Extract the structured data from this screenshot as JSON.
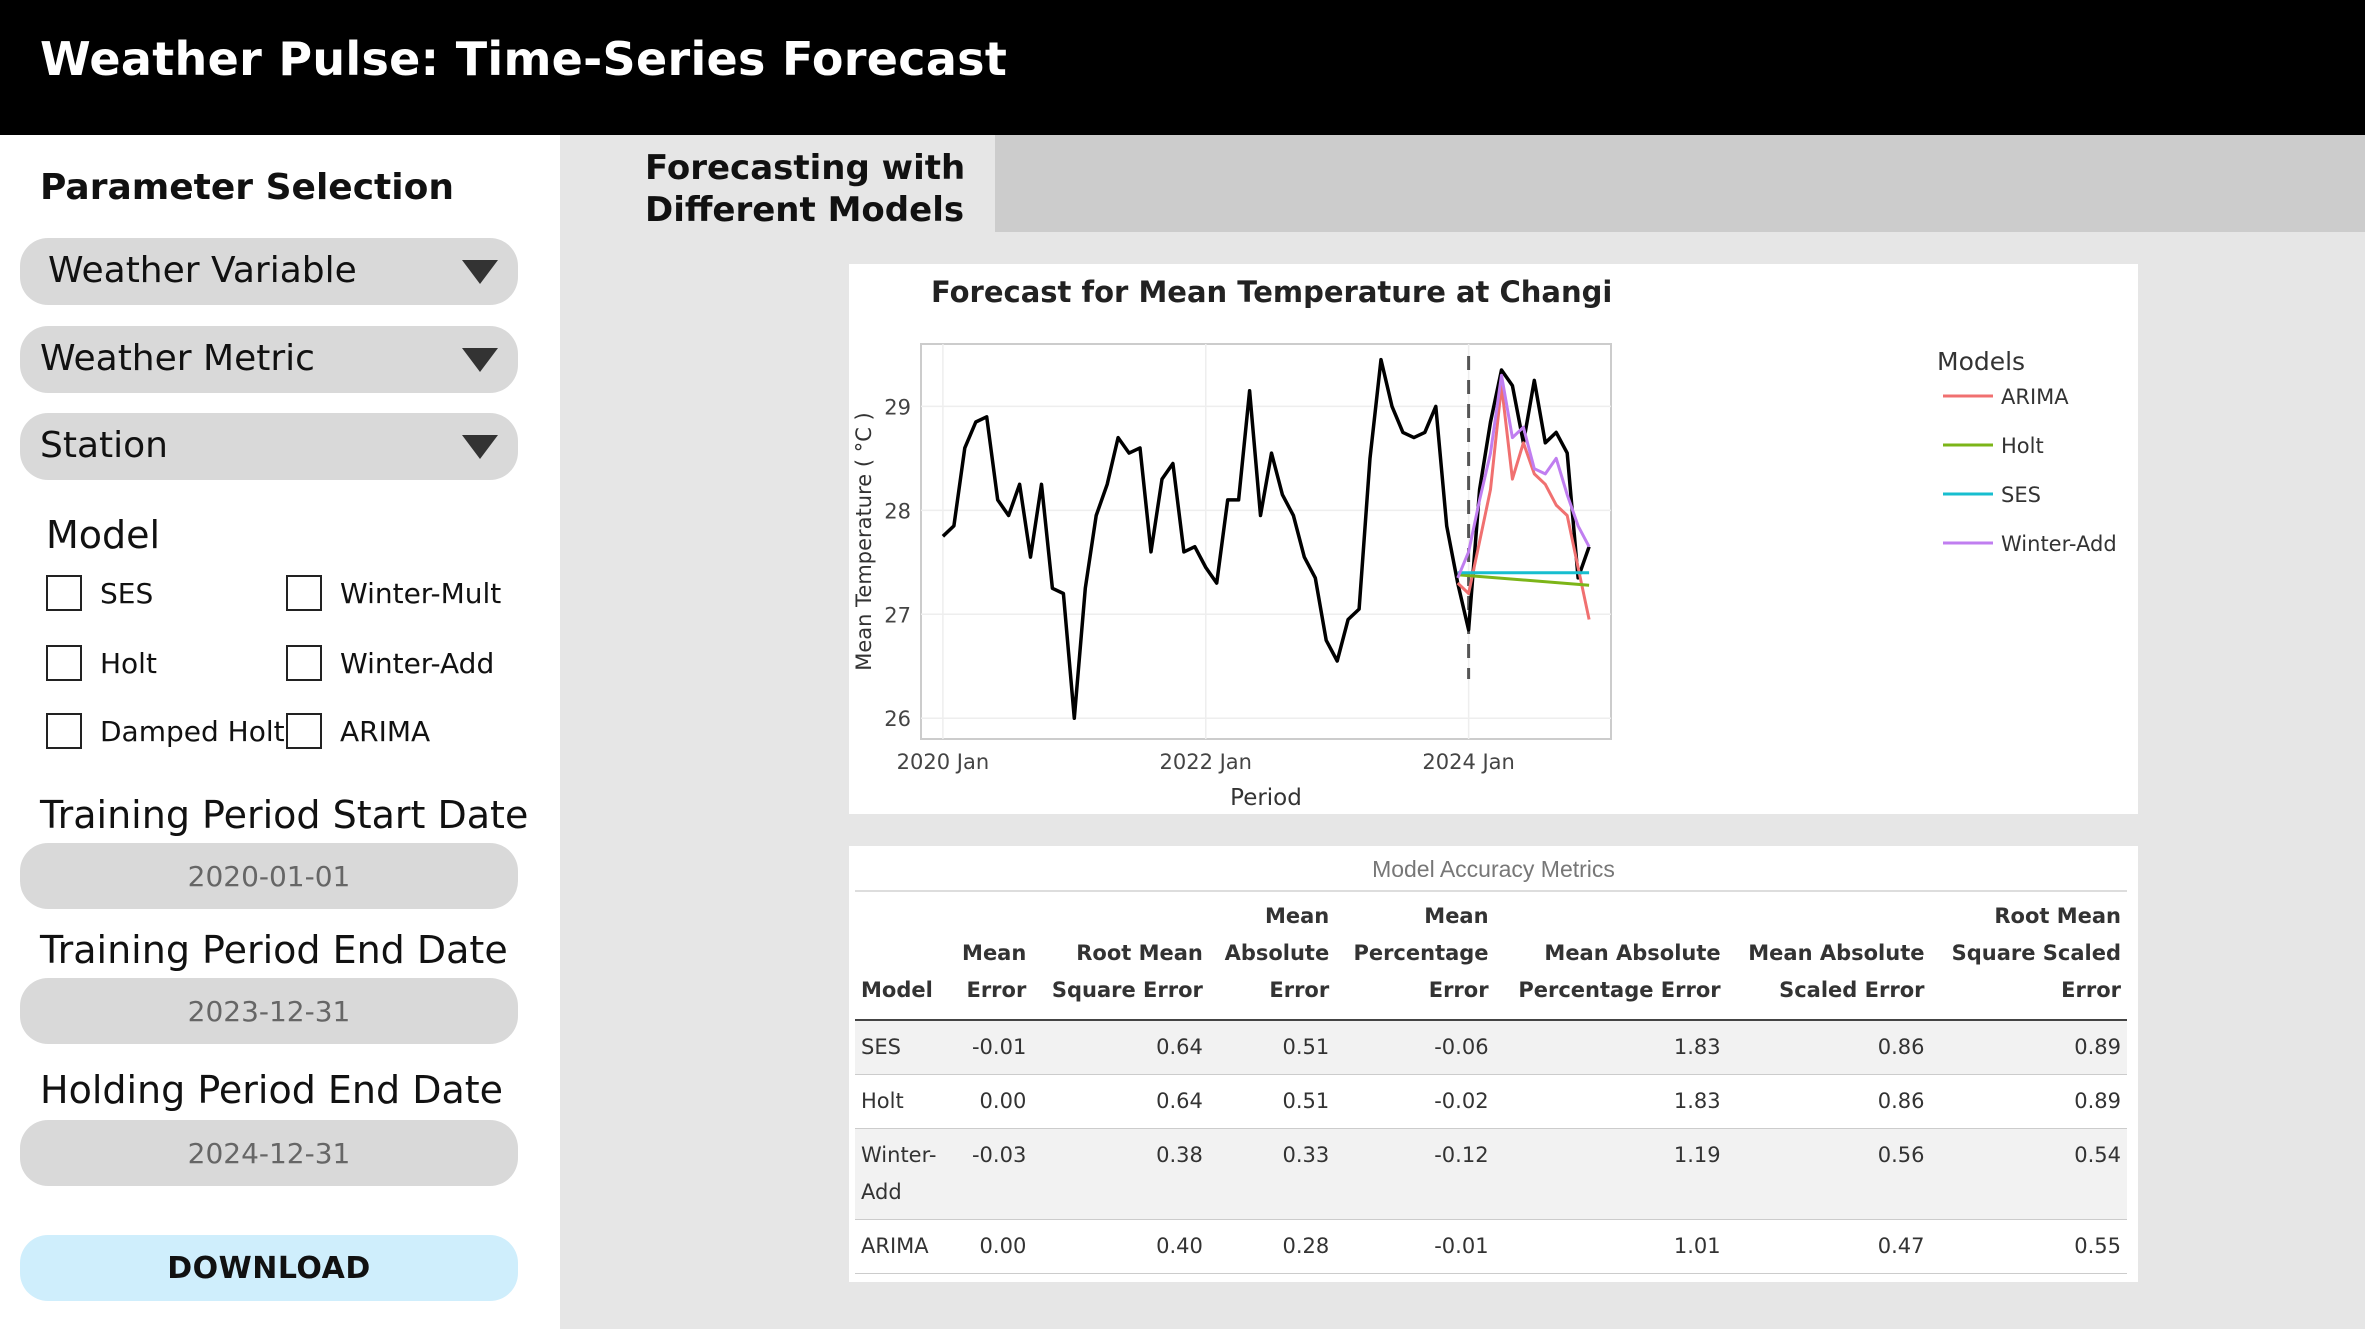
{
  "header": {
    "title": "Weather Pulse: Time-Series Forecast"
  },
  "sidebar": {
    "title": "Parameter Selection",
    "dropdowns": [
      {
        "label": "Weather Variable"
      },
      {
        "label": "Weather Metric"
      },
      {
        "label": "Station"
      }
    ],
    "model_title": "Model",
    "models": [
      "SES",
      "Winter-Mult",
      "Holt",
      "Winter-Add",
      "Damped Holt",
      "ARIMA"
    ],
    "training_start_label": "Training Period Start Date",
    "training_start_value": "2020-01-01",
    "training_end_label": "Training Period End Date",
    "training_end_value": "2023-12-31",
    "holding_end_label": "Holding Period End Date",
    "holding_end_value": "2024-12-31",
    "download_label": "DOWNLOAD"
  },
  "tabs": {
    "active": "Forecasting with Different Models"
  },
  "chart_data": {
    "type": "line",
    "title": "Forecast for Mean Temperature at Changi",
    "xlabel": "Period",
    "ylabel": "Mean Temperature ( °C )",
    "ylim": [
      25.8,
      29.6
    ],
    "xlim": [
      "2019-11",
      "2025-02"
    ],
    "x_ticks": [
      "2020 Jan",
      "2022 Jan",
      "2024 Jan"
    ],
    "y_ticks": [
      26,
      27,
      28,
      29
    ],
    "legend_title": "Models",
    "legend_position": "right",
    "split_date": "2024-01",
    "series": [
      {
        "name": "Actual",
        "color": "#000000",
        "x": [
          "2020-01",
          "2020-02",
          "2020-03",
          "2020-04",
          "2020-05",
          "2020-06",
          "2020-07",
          "2020-08",
          "2020-09",
          "2020-10",
          "2020-11",
          "2020-12",
          "2021-01",
          "2021-02",
          "2021-03",
          "2021-04",
          "2021-05",
          "2021-06",
          "2021-07",
          "2021-08",
          "2021-09",
          "2021-10",
          "2021-11",
          "2021-12",
          "2022-01",
          "2022-02",
          "2022-03",
          "2022-04",
          "2022-05",
          "2022-06",
          "2022-07",
          "2022-08",
          "2022-09",
          "2022-10",
          "2022-11",
          "2022-12",
          "2023-01",
          "2023-02",
          "2023-03",
          "2023-04",
          "2023-05",
          "2023-06",
          "2023-07",
          "2023-08",
          "2023-09",
          "2023-10",
          "2023-11",
          "2023-12",
          "2024-01",
          "2024-02",
          "2024-03",
          "2024-04",
          "2024-05",
          "2024-06",
          "2024-07",
          "2024-08",
          "2024-09",
          "2024-10",
          "2024-11",
          "2024-12"
        ],
        "values": [
          27.75,
          27.85,
          28.6,
          28.85,
          28.9,
          28.1,
          27.95,
          28.25,
          27.55,
          28.25,
          27.25,
          27.2,
          26.0,
          27.25,
          27.95,
          28.25,
          28.7,
          28.55,
          28.6,
          27.6,
          28.3,
          28.45,
          27.6,
          27.65,
          27.45,
          27.3,
          28.1,
          28.1,
          29.15,
          27.95,
          28.55,
          28.15,
          27.95,
          27.55,
          27.35,
          26.75,
          26.55,
          26.95,
          27.05,
          28.5,
          29.45,
          29.0,
          28.75,
          28.7,
          28.75,
          29.0,
          27.85,
          27.3,
          26.85,
          28.2,
          28.85,
          29.35,
          29.2,
          28.65,
          29.25,
          28.65,
          28.75,
          28.55,
          27.35,
          27.65
        ]
      },
      {
        "name": "ARIMA",
        "color": "#f07070",
        "x": [
          "2023-12",
          "2024-01",
          "2024-02",
          "2024-03",
          "2024-04",
          "2024-05",
          "2024-06",
          "2024-07",
          "2024-08",
          "2024-09",
          "2024-10",
          "2024-11",
          "2024-12"
        ],
        "values": [
          27.3,
          27.2,
          27.7,
          28.2,
          29.2,
          28.3,
          28.65,
          28.35,
          28.25,
          28.05,
          27.95,
          27.45,
          26.95
        ]
      },
      {
        "name": "Holt",
        "color": "#7cb518",
        "x": [
          "2023-12",
          "2024-12"
        ],
        "values": [
          27.38,
          27.28
        ]
      },
      {
        "name": "SES",
        "color": "#17becf",
        "x": [
          "2023-12",
          "2024-12"
        ],
        "values": [
          27.4,
          27.4
        ]
      },
      {
        "name": "Winter-Add",
        "color": "#c07ef0",
        "x": [
          "2023-12",
          "2024-01",
          "2024-02",
          "2024-03",
          "2024-04",
          "2024-05",
          "2024-06",
          "2024-07",
          "2024-08",
          "2024-09",
          "2024-10",
          "2024-11",
          "2024-12"
        ],
        "values": [
          27.35,
          27.6,
          28.1,
          28.55,
          29.3,
          28.7,
          28.8,
          28.4,
          28.35,
          28.5,
          28.15,
          27.85,
          27.65
        ]
      }
    ]
  },
  "metrics": {
    "caption": "Model Accuracy Metrics",
    "headers": [
      [
        "Model"
      ],
      [
        "Mean",
        "Error"
      ],
      [
        "Root Mean",
        "Square Error"
      ],
      [
        "Mean",
        "Absolute",
        "Error"
      ],
      [
        "Mean",
        "Percentage",
        "Error"
      ],
      [
        "Mean Absolute",
        "Percentage Error"
      ],
      [
        "Mean Absolute",
        "Scaled Error"
      ],
      [
        "Root Mean",
        "Square Scaled",
        "Error"
      ]
    ],
    "rows": [
      [
        [
          "SES"
        ],
        "-0.01",
        "0.64",
        "0.51",
        "-0.06",
        "1.83",
        "0.86",
        "0.89"
      ],
      [
        [
          "Holt"
        ],
        "0.00",
        "0.64",
        "0.51",
        "-0.02",
        "1.83",
        "0.86",
        "0.89"
      ],
      [
        [
          "Winter-",
          "Add"
        ],
        "-0.03",
        "0.38",
        "0.33",
        "-0.12",
        "1.19",
        "0.56",
        "0.54"
      ],
      [
        [
          "ARIMA"
        ],
        "0.00",
        "0.40",
        "0.28",
        "-0.01",
        "1.01",
        "0.47",
        "0.55"
      ]
    ]
  }
}
